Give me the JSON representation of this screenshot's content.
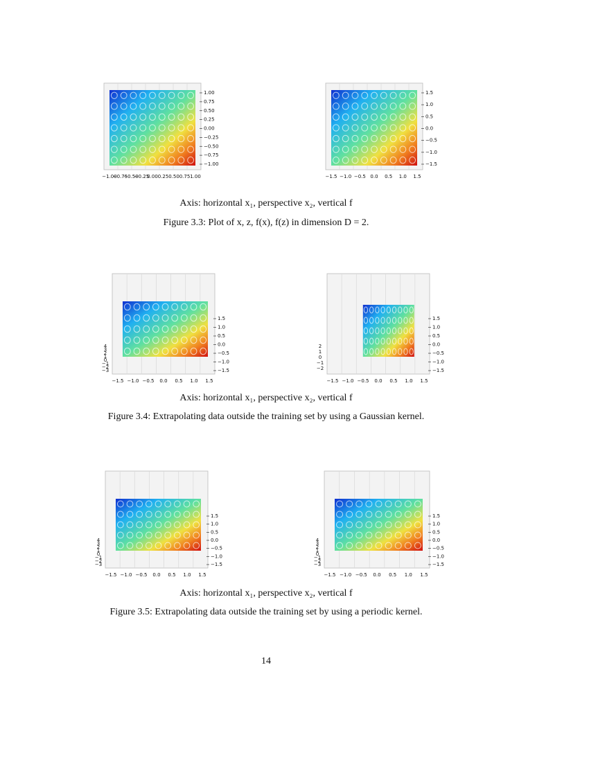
{
  "figures": [
    {
      "panels": [
        {
          "x_ticks": [
            "−1.00",
            "−0.75",
            "−0.50",
            "−0.25",
            "0.00",
            "0.25",
            "0.50",
            "0.75",
            "1.00"
          ],
          "side_ticks": [
            "1.00",
            "0.75",
            "0.50",
            "0.25",
            "0.00",
            "−0.25",
            "−0.50",
            "−0.75",
            "−1.00"
          ]
        },
        {
          "x_ticks": [
            "−1.5",
            "−1.0",
            "−0.5",
            "0.0",
            "0.5",
            "1.0",
            "1.5"
          ],
          "side_ticks": [
            "1.5",
            "1.0",
            "0.5",
            "0.0",
            "−0.5",
            "−1.0",
            "−1.5"
          ]
        }
      ],
      "axis_note": "Axis: horizontal x₁, perspective x₂, vertical f",
      "caption": "Figure 3.3: Plot of x, z, f(x), f(z) in dimension D = 2."
    },
    {
      "panels": [
        {
          "x_ticks": [
            "−1.5",
            "−1.0",
            "−0.5",
            "0.0",
            "0.5",
            "1.0",
            "1.5"
          ],
          "side_ticks": [
            "1.5",
            "1.0",
            "0.5",
            "0.0",
            "−0.5",
            "−1.0",
            "−1.5"
          ],
          "z_ticks": [
            "4",
            "3",
            "2",
            "1",
            "0",
            "−1",
            "−2",
            "−3"
          ]
        },
        {
          "x_ticks": [
            "−1.5",
            "−1.0",
            "−0.5",
            "0.0",
            "0.5",
            "1.0",
            "1.5"
          ],
          "side_ticks": [
            "1.5",
            "1.0",
            "0.5",
            "0.0",
            "−0.5",
            "−1.0",
            "−1.5"
          ],
          "z_ticks": [
            "2",
            "1",
            "0",
            "−1",
            "−2"
          ]
        }
      ],
      "axis_note": "Axis: horizontal x₁, perspective x₂, vertical f",
      "caption": "Figure 3.4: Extrapolating data outside the training set by using a Gaussian kernel."
    },
    {
      "panels": [
        {
          "x_ticks": [
            "−1.5",
            "−1.0",
            "−0.5",
            "0.0",
            "0.5",
            "1.0",
            "1.5"
          ],
          "side_ticks": [
            "1.5",
            "1.0",
            "0.5",
            "0.0",
            "−0.5",
            "−1.0",
            "−1.5"
          ],
          "z_ticks": [
            "4",
            "3",
            "2",
            "1",
            "0",
            "−1",
            "−2",
            "−3"
          ]
        },
        {
          "x_ticks": [
            "−1.5",
            "−1.0",
            "−0.5",
            "0.0",
            "0.5",
            "1.0",
            "1.5"
          ],
          "side_ticks": [
            "1.5",
            "1.0",
            "0.5",
            "0.0",
            "−0.5",
            "−1.0",
            "−1.5"
          ],
          "z_ticks": [
            "4",
            "3",
            "2",
            "1",
            "0",
            "−1",
            "−2",
            "−3"
          ]
        }
      ],
      "axis_note": "Axis: horizontal x₁, perspective x₂, vertical f",
      "caption": "Figure 3.5: Extrapolating data outside the training set by using a periodic kernel."
    }
  ],
  "page_number": "14"
}
